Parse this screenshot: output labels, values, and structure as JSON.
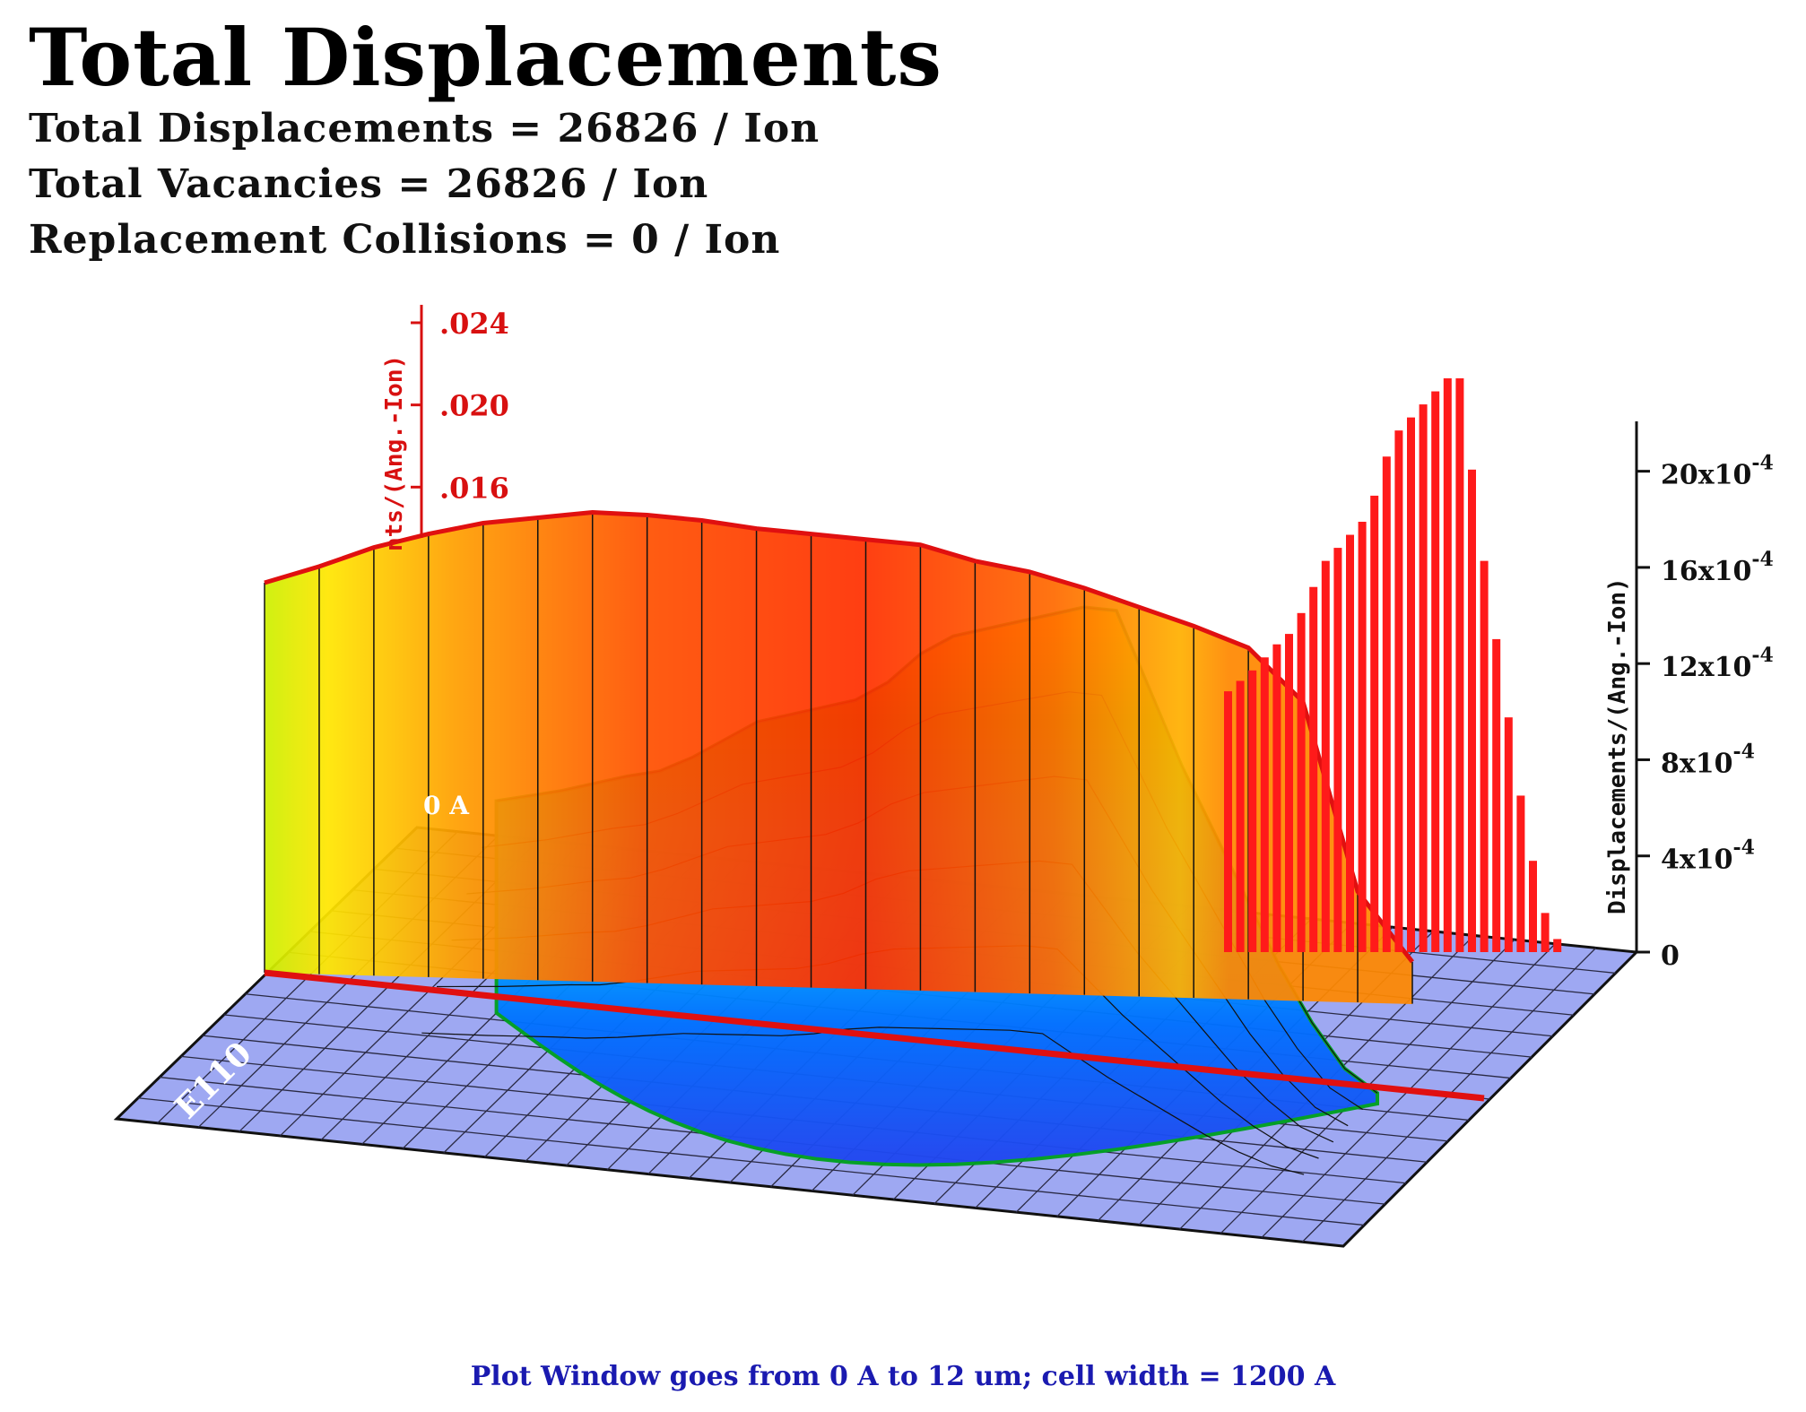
{
  "header": {
    "title": "Total Displacements",
    "stats": [
      "Total Displacements = 26826 / Ion",
      "Total Vacancies = 26826 / Ion",
      "Replacement Collisions = 0 / Ion"
    ]
  },
  "footer": {
    "caption": "Plot Window goes from 0 A to 12 um;  cell width = 1200 A"
  },
  "chart_data": {
    "type": "area",
    "title": "Total Displacements",
    "left_axis": {
      "label": "nts/(Ang.-Ion)",
      "ticks": [
        ".016",
        ".020",
        ".024"
      ],
      "tick_values": [
        0.016,
        0.02,
        0.024
      ],
      "color": "#d81010"
    },
    "right_axis": {
      "label": "Displacements/(Ang.-Ion)",
      "ticks": [
        {
          "value": 0,
          "base": "0",
          "exp": ""
        },
        {
          "value": 0.0004,
          "base": "4x10",
          "exp": "-4"
        },
        {
          "value": 0.0008,
          "base": "8x10",
          "exp": "-4"
        },
        {
          "value": 0.0012,
          "base": "12x10",
          "exp": "-4"
        },
        {
          "value": 0.0016,
          "base": "16x10",
          "exp": "-4"
        },
        {
          "value": 0.002,
          "base": "20x10",
          "exp": "-4"
        }
      ],
      "ylim": [
        0,
        0.0022
      ]
    },
    "floor_labels": {
      "origin": "0 A",
      "axis_name": "E110"
    },
    "x_range_angstrom": [
      0,
      120000
    ],
    "series": [
      {
        "values": [
          0.0144,
          0.015,
          0.0157,
          0.0162,
          0.0166,
          0.0168,
          0.017,
          0.0169,
          0.0167,
          0.0164,
          0.0162,
          0.016,
          0.0158,
          0.0152,
          0.0148,
          0.0142,
          0.0135,
          0.0128,
          0.012,
          0.01,
          0.003,
          0.0004
        ]
      },
      {
        "values": [
          0.001,
          0.00104,
          0.00108,
          0.00113,
          0.00118,
          0.00122,
          0.0013,
          0.0014,
          0.0015,
          0.00155,
          0.0016,
          0.00165,
          0.00175,
          0.0019,
          0.002,
          0.00205,
          0.0021,
          0.00215,
          0.0022,
          0.0022,
          0.00185,
          0.0015,
          0.0012,
          0.0009,
          0.0006,
          0.00035,
          0.00015,
          5e-05
        ]
      }
    ],
    "colors": {
      "line": "#e01010",
      "floor": "#9ea8f2",
      "grid": "#1a1a1a",
      "bars": "#ff1a1a"
    }
  }
}
